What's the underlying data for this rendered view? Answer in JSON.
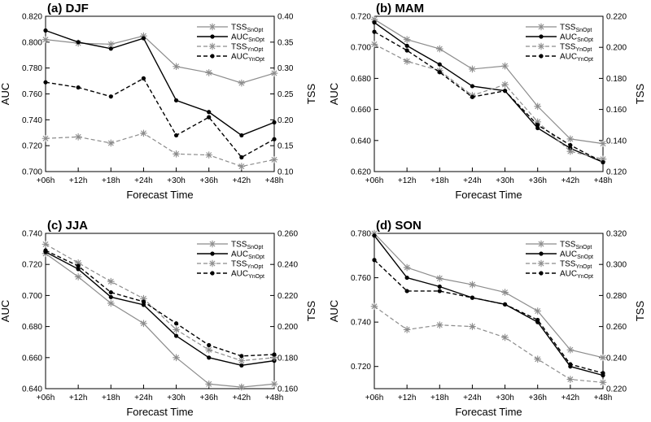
{
  "figure": {
    "x_label": "Forecast Time",
    "left_axis_label": "AUC",
    "right_axis_label": "TSS",
    "colors": {
      "sn": "#000000",
      "yn": "#000000",
      "tss": "#8c8c8c"
    },
    "x_ticks": [
      "+06h",
      "+12h",
      "+18h",
      "+24h",
      "+30h",
      "+36h",
      "+42h",
      "+48h"
    ]
  },
  "chart_data": [
    {
      "type": "line",
      "title": "(a) DJF",
      "categories": [
        "+06h",
        "+12h",
        "+18h",
        "+24h",
        "+30h",
        "+36h",
        "+42h",
        "+48h"
      ],
      "xlabel": "Forecast Time",
      "ylabel": "AUC",
      "ylabel_right": "TSS",
      "ylim": [
        0.7,
        0.82
      ],
      "ylim_right": [
        0.1,
        0.4
      ],
      "y_ticks": [
        "0.700",
        "0.720",
        "0.740",
        "0.760",
        "0.780",
        "0.800",
        "0.820"
      ],
      "y_ticks_right": [
        "0.10",
        "0.15",
        "0.20",
        "0.25",
        "0.30",
        "0.35",
        "0.40"
      ],
      "legend_position": "top-right",
      "series": [
        {
          "name": "TSS",
          "sub": "SnOpt",
          "axis": "right",
          "style": "solid",
          "marker": "star",
          "color": "#8c8c8c",
          "values": [
            0.355,
            0.348,
            0.346,
            0.362,
            0.303,
            0.291,
            0.271,
            0.29
          ]
        },
        {
          "name": "AUC",
          "sub": "SnOpt",
          "axis": "left",
          "style": "solid",
          "marker": "dot",
          "color": "#000000",
          "values": [
            0.809,
            0.8,
            0.795,
            0.803,
            0.755,
            0.746,
            0.728,
            0.738
          ]
        },
        {
          "name": "TSS",
          "sub": "YnOpt",
          "axis": "right",
          "style": "dashed",
          "marker": "star",
          "color": "#8c8c8c",
          "values": [
            0.164,
            0.167,
            0.155,
            0.174,
            0.134,
            0.132,
            0.11,
            0.123
          ]
        },
        {
          "name": "AUC",
          "sub": "YnOpt",
          "axis": "left",
          "style": "dashed",
          "marker": "dot",
          "color": "#000000",
          "values": [
            0.769,
            0.765,
            0.758,
            0.772,
            0.728,
            0.742,
            0.711,
            0.725
          ]
        }
      ]
    },
    {
      "type": "line",
      "title": "(b) MAM",
      "categories": [
        "+06h",
        "+12h",
        "+18h",
        "+24h",
        "+30h",
        "+36h",
        "+42h",
        "+48h"
      ],
      "xlabel": "Forecast Time",
      "ylabel": "AUC",
      "ylabel_right": "TSS",
      "ylim": [
        0.62,
        0.72
      ],
      "ylim_right": [
        0.12,
        0.22
      ],
      "y_ticks": [
        "0.620",
        "0.640",
        "0.660",
        "0.680",
        "0.700",
        "0.720"
      ],
      "y_ticks_right": [
        "0.120",
        "0.140",
        "0.160",
        "0.180",
        "0.200",
        "0.220"
      ],
      "legend_position": "top-right",
      "series": [
        {
          "name": "TSS",
          "sub": "SnOpt",
          "axis": "right",
          "style": "solid",
          "marker": "star",
          "color": "#8c8c8c",
          "values": [
            0.218,
            0.205,
            0.199,
            0.186,
            0.188,
            0.162,
            0.141,
            0.138
          ]
        },
        {
          "name": "AUC",
          "sub": "SnOpt",
          "axis": "left",
          "style": "solid",
          "marker": "dot",
          "color": "#000000",
          "values": [
            0.716,
            0.701,
            0.689,
            0.675,
            0.672,
            0.648,
            0.635,
            0.626
          ]
        },
        {
          "name": "TSS",
          "sub": "YnOpt",
          "axis": "right",
          "style": "dashed",
          "marker": "star",
          "color": "#8c8c8c",
          "values": [
            0.202,
            0.191,
            0.185,
            0.169,
            0.176,
            0.152,
            0.133,
            0.128
          ]
        },
        {
          "name": "AUC",
          "sub": "YnOpt",
          "axis": "left",
          "style": "dashed",
          "marker": "dot",
          "color": "#000000",
          "values": [
            0.71,
            0.698,
            0.684,
            0.668,
            0.672,
            0.65,
            0.637,
            0.626
          ]
        }
      ]
    },
    {
      "type": "line",
      "title": "(c) JJA",
      "categories": [
        "+06h",
        "+12h",
        "+18h",
        "+24h",
        "+30h",
        "+36h",
        "+42h",
        "+48h"
      ],
      "xlabel": "Forecast Time",
      "ylabel": "AUC",
      "ylabel_right": "TSS",
      "ylim": [
        0.64,
        0.74
      ],
      "ylim_right": [
        0.16,
        0.26
      ],
      "y_ticks": [
        "0.640",
        "0.660",
        "0.680",
        "0.700",
        "0.720",
        "0.740"
      ],
      "y_ticks_right": [
        "0.160",
        "0.180",
        "0.200",
        "0.220",
        "0.240",
        "0.260"
      ],
      "legend_position": "top-right",
      "series": [
        {
          "name": "TSS",
          "sub": "SnOpt",
          "axis": "right",
          "style": "solid",
          "marker": "star",
          "color": "#8c8c8c",
          "values": [
            0.247,
            0.232,
            0.215,
            0.202,
            0.18,
            0.163,
            0.161,
            0.163
          ]
        },
        {
          "name": "AUC",
          "sub": "SnOpt",
          "axis": "left",
          "style": "solid",
          "marker": "dot",
          "color": "#000000",
          "values": [
            0.728,
            0.717,
            0.699,
            0.694,
            0.674,
            0.66,
            0.655,
            0.658
          ]
        },
        {
          "name": "TSS",
          "sub": "YnOpt",
          "axis": "right",
          "style": "dashed",
          "marker": "star",
          "color": "#8c8c8c",
          "values": [
            0.253,
            0.241,
            0.229,
            0.218,
            0.198,
            0.185,
            0.178,
            0.18
          ]
        },
        {
          "name": "AUC",
          "sub": "YnOpt",
          "axis": "left",
          "style": "dashed",
          "marker": "dot",
          "color": "#000000",
          "values": [
            0.729,
            0.719,
            0.702,
            0.696,
            0.682,
            0.668,
            0.661,
            0.662
          ]
        }
      ]
    },
    {
      "type": "line",
      "title": "(d) SON",
      "categories": [
        "+06h",
        "+12h",
        "+18h",
        "+24h",
        "+30h",
        "+36h",
        "+42h",
        "+48h"
      ],
      "xlabel": "Forecast Time",
      "ylabel": "AUC",
      "ylabel_right": "TSS",
      "ylim": [
        0.71,
        0.78
      ],
      "ylim_right": [
        0.22,
        0.32
      ],
      "y_ticks": [
        "0.720",
        "0.740",
        "0.760",
        "0.780"
      ],
      "y_ticks_right": [
        "0.220",
        "0.240",
        "0.260",
        "0.280",
        "0.300",
        "0.320"
      ],
      "legend_position": "top-right",
      "series": [
        {
          "name": "TSS",
          "sub": "SnOpt",
          "axis": "right",
          "style": "solid",
          "marker": "star",
          "color": "#8c8c8c",
          "values": [
            0.32,
            0.298,
            0.291,
            0.287,
            0.282,
            0.27,
            0.245,
            0.24
          ]
        },
        {
          "name": "AUC",
          "sub": "SnOpt",
          "axis": "left",
          "style": "solid",
          "marker": "dot",
          "color": "#000000",
          "values": [
            0.779,
            0.76,
            0.756,
            0.751,
            0.748,
            0.74,
            0.72,
            0.716
          ]
        },
        {
          "name": "TSS",
          "sub": "YnOpt",
          "axis": "right",
          "style": "dashed",
          "marker": "star",
          "color": "#8c8c8c",
          "values": [
            0.273,
            0.258,
            0.261,
            0.26,
            0.253,
            0.239,
            0.226,
            0.224
          ]
        },
        {
          "name": "AUC",
          "sub": "YnOpt",
          "axis": "left",
          "style": "dashed",
          "marker": "dot",
          "color": "#000000",
          "values": [
            0.768,
            0.754,
            0.754,
            0.751,
            0.748,
            0.741,
            0.721,
            0.717
          ]
        }
      ]
    }
  ]
}
